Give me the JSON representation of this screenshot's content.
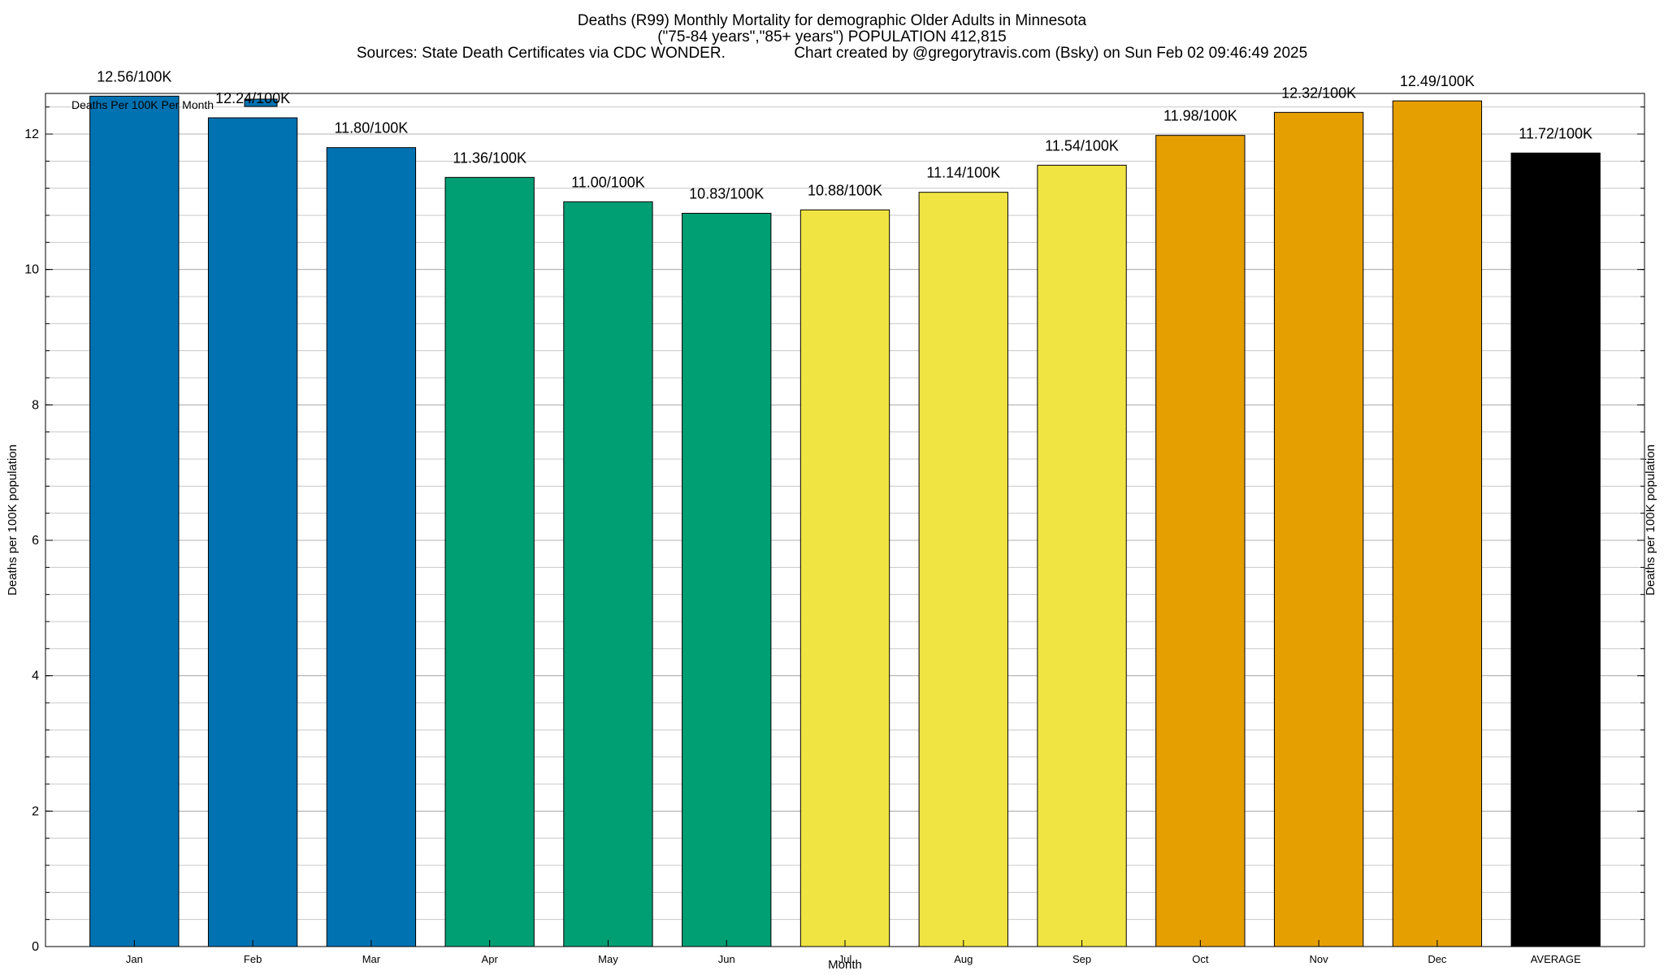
{
  "chart_data": {
    "type": "bar",
    "title_lines": [
      "Deaths (R99) Monthly Mortality for demographic Older Adults in Minnesota",
      "(\"75-84 years\",\"85+ years\") POPULATION 412,815",
      "Sources: State Death Certificates via CDC WONDER.                Chart created by @gregorytravis.com (Bsky) on Sun Feb 02 09:46:49 2025"
    ],
    "xlabel": "Month",
    "ylabel": "Deaths per 100K population",
    "y2label": "Deaths per 100K population",
    "ylim": [
      0,
      12.6
    ],
    "yticks": [
      "0",
      "2",
      "4",
      "6",
      "8",
      "10",
      "12"
    ],
    "ytick_values": [
      0,
      2,
      4,
      6,
      8,
      10,
      12
    ],
    "minor_grid_step": 0.4,
    "grid": true,
    "legend": {
      "label": "Deaths Per 100K Per Month",
      "color": "#0072b2",
      "placement": "top-left"
    },
    "categories": [
      "Jan",
      "Feb",
      "Mar",
      "Apr",
      "May",
      "Jun",
      "Jul",
      "Aug",
      "Sep",
      "Oct",
      "Nov",
      "Dec",
      "AVERAGE"
    ],
    "values": [
      12.56,
      12.24,
      11.8,
      11.36,
      11.0,
      10.83,
      10.88,
      11.14,
      11.54,
      11.98,
      12.32,
      12.49,
      11.72
    ],
    "value_labels": [
      "12.56/100K",
      "12.24/100K",
      "11.80/100K",
      "11.36/100K",
      "11.00/100K",
      "10.83/100K",
      "10.88/100K",
      "11.14/100K",
      "11.54/100K",
      "11.98/100K",
      "12.32/100K",
      "12.49/100K",
      "11.72/100K"
    ],
    "colors": [
      "#0072b2",
      "#0072b2",
      "#0072b2",
      "#009e73",
      "#009e73",
      "#009e73",
      "#f0e442",
      "#f0e442",
      "#f0e442",
      "#e69f00",
      "#e69f00",
      "#e69f00",
      "#000000"
    ]
  }
}
